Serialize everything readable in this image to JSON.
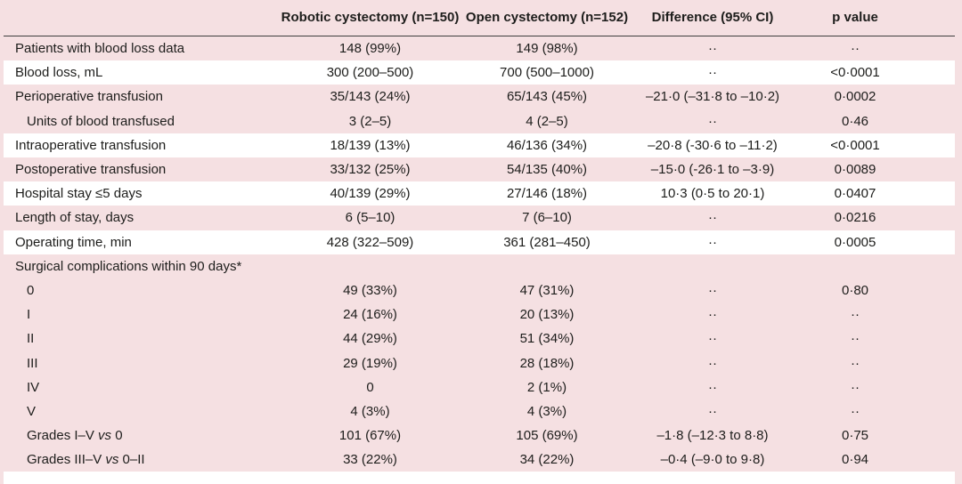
{
  "table": {
    "columns": {
      "label": "",
      "robotic": "Robotic cystectomy (n=150)",
      "open": "Open cystectomy (n=152)",
      "difference": "Difference (95% CI)",
      "p": "p value"
    },
    "placeholder": "··",
    "rows": [
      {
        "label": "Patients with blood loss data",
        "robotic": "148 (99%)",
        "open": "149 (98%)",
        "difference": "··",
        "p": "··"
      },
      {
        "label": "Blood loss, mL",
        "robotic": "300 (200–500)",
        "open": "700 (500–1000)",
        "difference": "··",
        "p": "<0·0001"
      },
      {
        "label": "Perioperative transfusion",
        "robotic": "35/143 (24%)",
        "open": "65/143 (45%)",
        "difference": "–21·0 (–31·8 to –10·2)",
        "p": "0·0002"
      },
      {
        "label": "Units of blood transfused",
        "robotic": "3 (2–5)",
        "open": "4 (2–5)",
        "difference": "··",
        "p": "0·46"
      },
      {
        "label": "Intraoperative transfusion",
        "robotic": "18/139 (13%)",
        "open": "46/136 (34%)",
        "difference": "–20·8 (-30·6 to –11·2)",
        "p": "<0·0001"
      },
      {
        "label": "Postoperative transfusion",
        "robotic": "33/132 (25%)",
        "open": "54/135 (40%)",
        "difference": "–15·0 (-26·1 to –3·9)",
        "p": "0·0089"
      },
      {
        "label": "Hospital stay ≤5 days",
        "robotic": "40/139 (29%)",
        "open": "27/146 (18%)",
        "difference": "10·3 (0·5 to 20·1)",
        "p": "0·0407"
      },
      {
        "label": "Length of stay, days",
        "robotic": "6 (5–10)",
        "open": "7 (6–10)",
        "difference": "··",
        "p": "0·0216"
      },
      {
        "label": "Operating time, min",
        "robotic": "428 (322–509)",
        "open": "361 (281–450)",
        "difference": "··",
        "p": "0·0005"
      },
      {
        "label": "Surgical complications within 90 days*",
        "robotic": "",
        "open": "",
        "difference": "",
        "p": ""
      },
      {
        "label": "0",
        "robotic": "49 (33%)",
        "open": "47 (31%)",
        "difference": "··",
        "p": "0·80"
      },
      {
        "label": "I",
        "robotic": "24 (16%)",
        "open": "20 (13%)",
        "difference": "··",
        "p": "··"
      },
      {
        "label": "II",
        "robotic": "44 (29%)",
        "open": "51 (34%)",
        "difference": "··",
        "p": "··"
      },
      {
        "label": "III",
        "robotic": "29 (19%)",
        "open": "28 (18%)",
        "difference": "··",
        "p": "··"
      },
      {
        "label": "IV",
        "robotic": "0",
        "open": "2 (1%)",
        "difference": "··",
        "p": "··"
      },
      {
        "label": "V",
        "robotic": "4 (3%)",
        "open": "4 (3%)",
        "difference": "··",
        "p": "··"
      },
      {
        "label_parts": [
          "Grades I–V ",
          "vs",
          " 0"
        ],
        "robotic": "101 (67%)",
        "open": "105 (69%)",
        "difference": "–1·8 (–12·3 to 8·8)",
        "p": "0·75"
      },
      {
        "label_parts": [
          "Grades III–V ",
          "vs",
          " 0–II"
        ],
        "robotic": "33 (22%)",
        "open": "34 (22%)",
        "difference": "–0·4 (–9·0 to 9·8)",
        "p": "0·94"
      }
    ]
  },
  "colors": {
    "table_pink": "#f5e0e2",
    "row_white": "#ffffff",
    "header_rule": "#3e3e3e",
    "text": "#1d1d1b"
  }
}
